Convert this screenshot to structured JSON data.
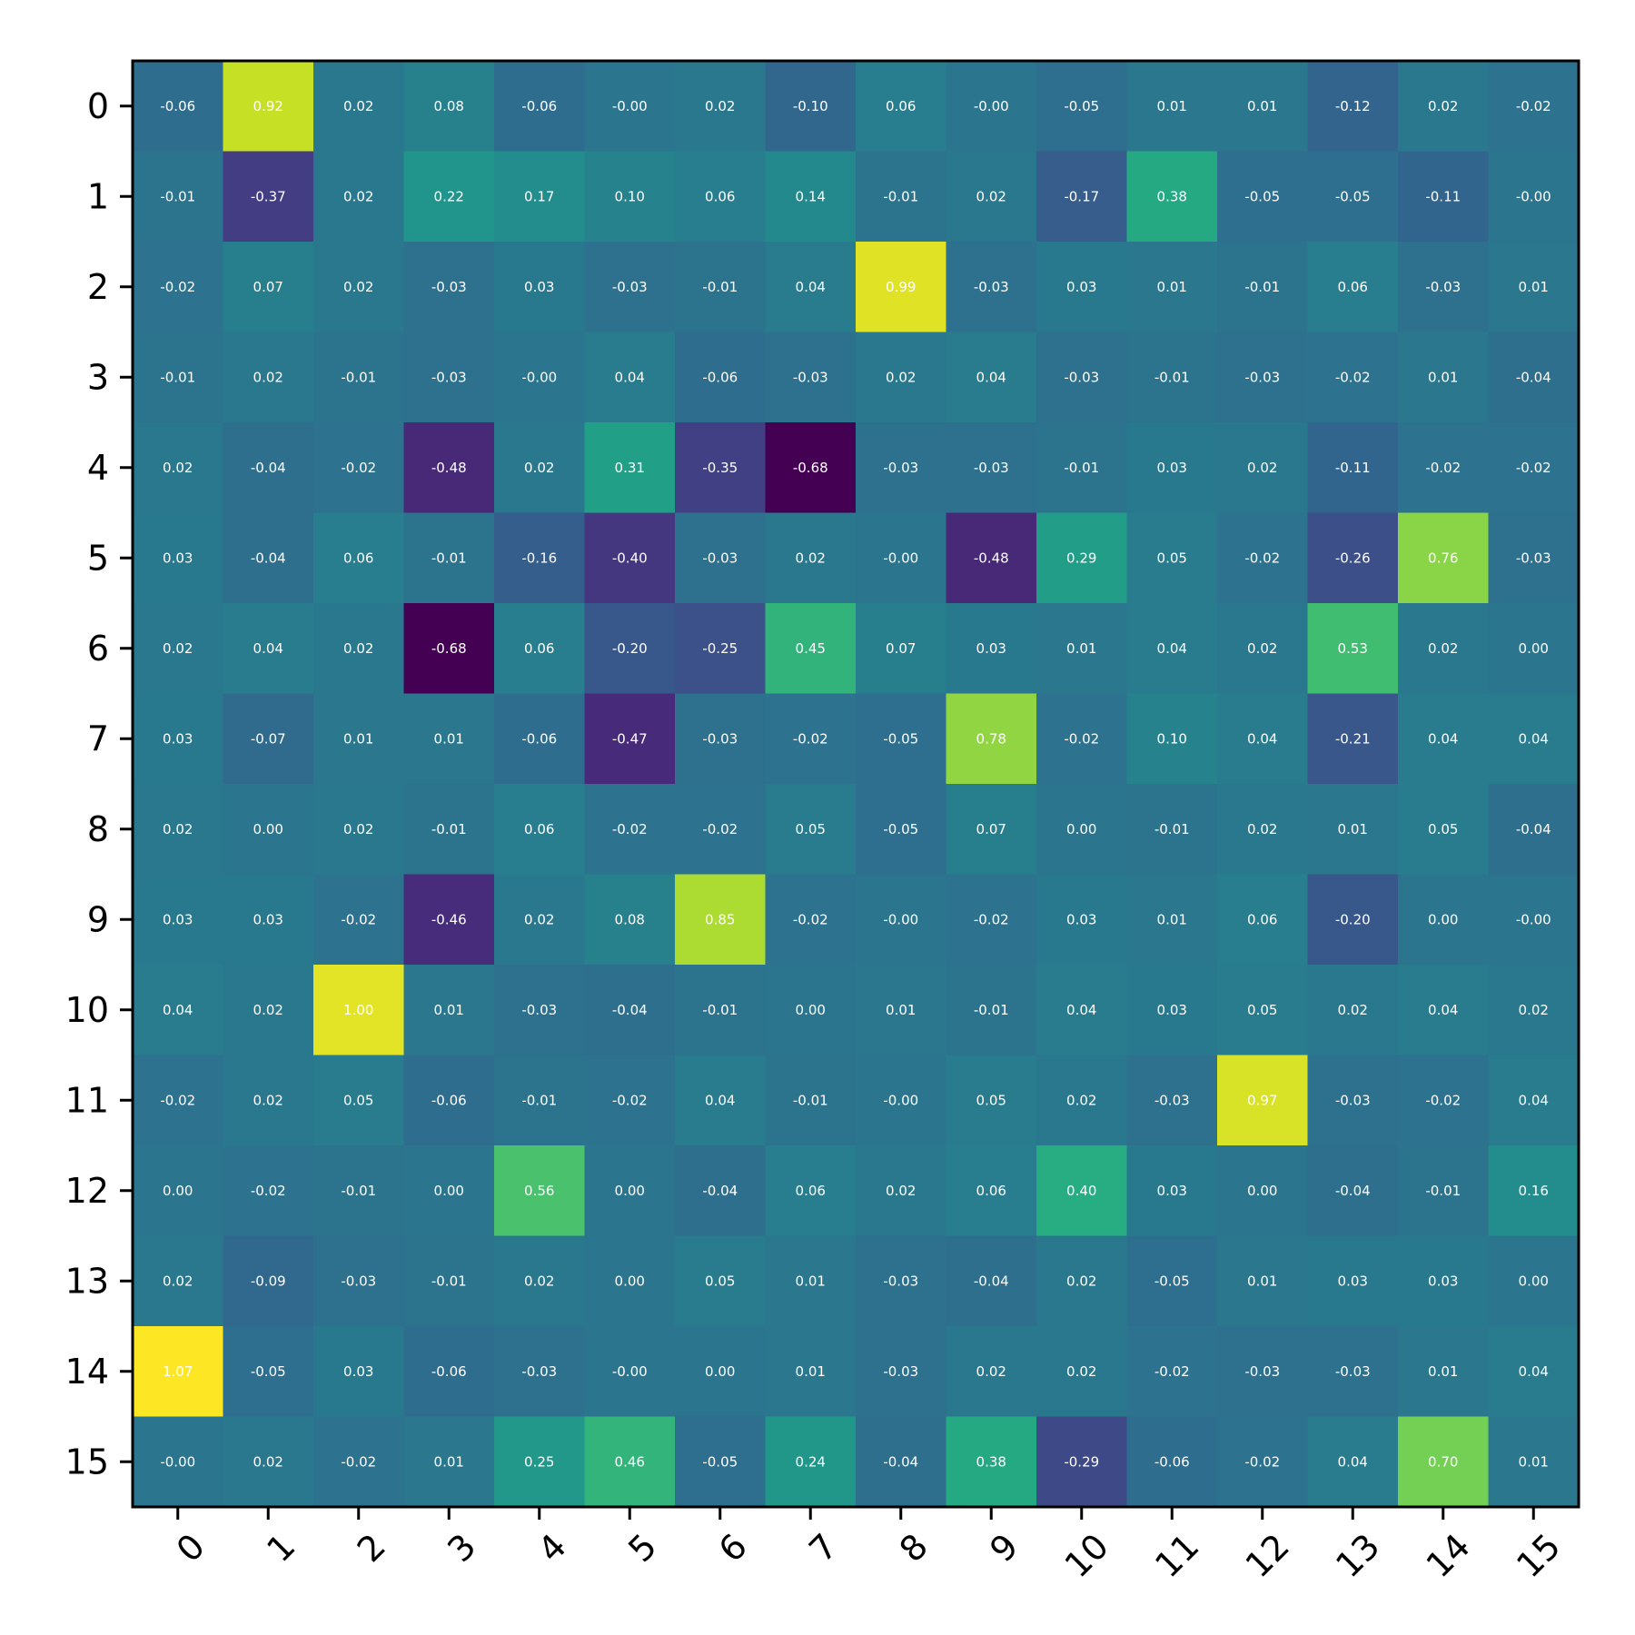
{
  "chart_data": {
    "type": "heatmap",
    "colormap": "viridis",
    "vmin": -0.68,
    "vmax": 1.07,
    "x_tick_labels": [
      "0",
      "1",
      "2",
      "3",
      "4",
      "5",
      "6",
      "7",
      "8",
      "9",
      "10",
      "11",
      "12",
      "13",
      "14",
      "15"
    ],
    "y_tick_labels": [
      "0",
      "1",
      "2",
      "3",
      "4",
      "5",
      "6",
      "7",
      "8",
      "9",
      "10",
      "11",
      "12",
      "13",
      "14",
      "15"
    ],
    "x_tick_rotation_deg": 45,
    "grid": false,
    "values": [
      [
        "-0.06",
        "0.92",
        "0.02",
        "0.08",
        "-0.06",
        "-0.00",
        "0.02",
        "-0.10",
        "0.06",
        "-0.00",
        "-0.05",
        "0.01",
        "0.01",
        "-0.12",
        "0.02",
        "-0.02"
      ],
      [
        "-0.01",
        "-0.37",
        "0.02",
        "0.22",
        "0.17",
        "0.10",
        "0.06",
        "0.14",
        "-0.01",
        "0.02",
        "-0.17",
        "0.38",
        "-0.05",
        "-0.05",
        "-0.11",
        "-0.00"
      ],
      [
        "-0.02",
        "0.07",
        "0.02",
        "-0.03",
        "0.03",
        "-0.03",
        "-0.01",
        "0.04",
        "0.99",
        "-0.03",
        "0.03",
        "0.01",
        "-0.01",
        "0.06",
        "-0.03",
        "0.01"
      ],
      [
        "-0.01",
        "0.02",
        "-0.01",
        "-0.03",
        "-0.00",
        "0.04",
        "-0.06",
        "-0.03",
        "0.02",
        "0.04",
        "-0.03",
        "-0.01",
        "-0.03",
        "-0.02",
        "0.01",
        "-0.04"
      ],
      [
        "0.02",
        "-0.04",
        "-0.02",
        "-0.48",
        "0.02",
        "0.31",
        "-0.35",
        "-0.68",
        "-0.03",
        "-0.03",
        "-0.01",
        "0.03",
        "0.02",
        "-0.11",
        "-0.02",
        "-0.02"
      ],
      [
        "0.03",
        "-0.04",
        "0.06",
        "-0.01",
        "-0.16",
        "-0.40",
        "-0.03",
        "0.02",
        "-0.00",
        "-0.48",
        "0.29",
        "0.05",
        "-0.02",
        "-0.26",
        "0.76",
        "-0.03"
      ],
      [
        "0.02",
        "0.04",
        "0.02",
        "-0.68",
        "0.06",
        "-0.20",
        "-0.25",
        "0.45",
        "0.07",
        "0.03",
        "0.01",
        "0.04",
        "0.02",
        "0.53",
        "0.02",
        "0.00"
      ],
      [
        "0.03",
        "-0.07",
        "0.01",
        "0.01",
        "-0.06",
        "-0.47",
        "-0.03",
        "-0.02",
        "-0.05",
        "0.78",
        "-0.02",
        "0.10",
        "0.04",
        "-0.21",
        "0.04",
        "0.04"
      ],
      [
        "0.02",
        "0.00",
        "0.02",
        "-0.01",
        "0.06",
        "-0.02",
        "-0.02",
        "0.05",
        "-0.05",
        "0.07",
        "0.00",
        "-0.01",
        "0.02",
        "0.01",
        "0.05",
        "-0.04"
      ],
      [
        "0.03",
        "0.03",
        "-0.02",
        "-0.46",
        "0.02",
        "0.08",
        "0.85",
        "-0.02",
        "-0.00",
        "-0.02",
        "0.03",
        "0.01",
        "0.06",
        "-0.20",
        "0.00",
        "-0.00"
      ],
      [
        "0.04",
        "0.02",
        "1.00",
        "0.01",
        "-0.03",
        "-0.04",
        "-0.01",
        "0.00",
        "0.01",
        "-0.01",
        "0.04",
        "0.03",
        "0.05",
        "0.02",
        "0.04",
        "0.02"
      ],
      [
        "-0.02",
        "0.02",
        "0.05",
        "-0.06",
        "-0.01",
        "-0.02",
        "0.04",
        "-0.01",
        "-0.00",
        "0.05",
        "0.02",
        "-0.03",
        "0.97",
        "-0.03",
        "-0.02",
        "0.04"
      ],
      [
        "0.00",
        "-0.02",
        "-0.01",
        "0.00",
        "0.56",
        "0.00",
        "-0.04",
        "0.06",
        "0.02",
        "0.06",
        "0.40",
        "0.03",
        "0.00",
        "-0.04",
        "-0.01",
        "0.16"
      ],
      [
        "0.02",
        "-0.09",
        "-0.03",
        "-0.01",
        "0.02",
        "0.00",
        "0.05",
        "0.01",
        "-0.03",
        "-0.04",
        "0.02",
        "-0.05",
        "0.01",
        "0.03",
        "0.03",
        "0.00"
      ],
      [
        "1.07",
        "-0.05",
        "0.03",
        "-0.06",
        "-0.03",
        "-0.00",
        "0.00",
        "0.01",
        "-0.03",
        "0.02",
        "0.02",
        "-0.02",
        "-0.03",
        "-0.03",
        "0.01",
        "0.04"
      ],
      [
        "-0.00",
        "0.02",
        "-0.02",
        "0.01",
        "0.25",
        "0.46",
        "-0.05",
        "0.24",
        "-0.04",
        "0.38",
        "-0.29",
        "-0.06",
        "-0.02",
        "0.04",
        "0.70",
        "0.01"
      ]
    ]
  }
}
